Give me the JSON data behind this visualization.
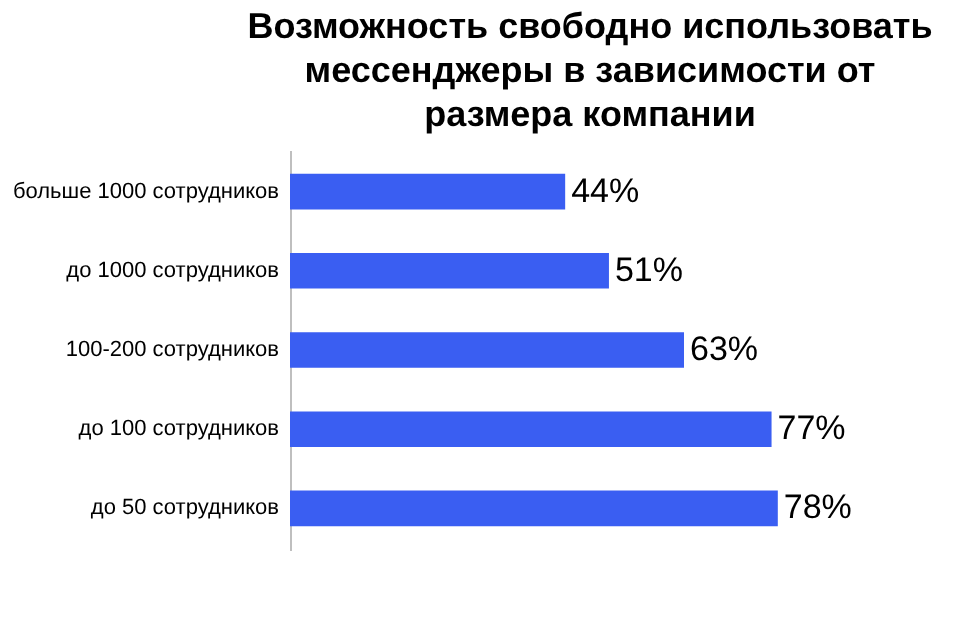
{
  "chart_data": {
    "type": "bar",
    "orientation": "horizontal",
    "title": "Возможность свободно использовать\nмессенджеры в зависимости от\nразмера компании",
    "categories": [
      "больше 1000 сотрудников",
      "до 1000 сотрудников",
      "100-200 сотрудников",
      "до 100 сотрудников",
      "до 50 сотрудников"
    ],
    "values": [
      44,
      51,
      63,
      77,
      78
    ],
    "value_labels": [
      "44%",
      "51%",
      "63%",
      "77%",
      "78%"
    ],
    "color": "#3a5ef2",
    "grid": false
  }
}
